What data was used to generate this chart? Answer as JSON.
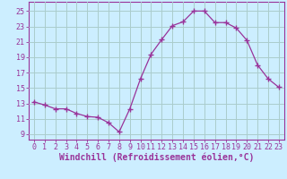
{
  "x": [
    0,
    1,
    2,
    3,
    4,
    5,
    6,
    7,
    8,
    9,
    10,
    11,
    12,
    13,
    14,
    15,
    16,
    17,
    18,
    19,
    20,
    21,
    22,
    23
  ],
  "y": [
    13.2,
    12.8,
    12.3,
    12.3,
    11.7,
    11.3,
    11.2,
    10.5,
    9.3,
    12.3,
    16.2,
    19.4,
    21.3,
    23.1,
    23.6,
    25.0,
    25.0,
    23.5,
    23.5,
    22.8,
    21.2,
    18.0,
    16.2,
    15.1
  ],
  "line_color": "#993399",
  "marker": "+",
  "marker_size": 4,
  "bg_color": "#cceeff",
  "grid_color": "#aacccc",
  "xlabel": "Windchill (Refroidissement éolien,°C)",
  "yticks": [
    9,
    11,
    13,
    15,
    17,
    19,
    21,
    23,
    25
  ],
  "xlim": [
    -0.5,
    23.5
  ],
  "ylim": [
    8.3,
    26.2
  ],
  "text_color": "#993399",
  "xlabel_fontsize": 7,
  "tick_fontsize": 6
}
